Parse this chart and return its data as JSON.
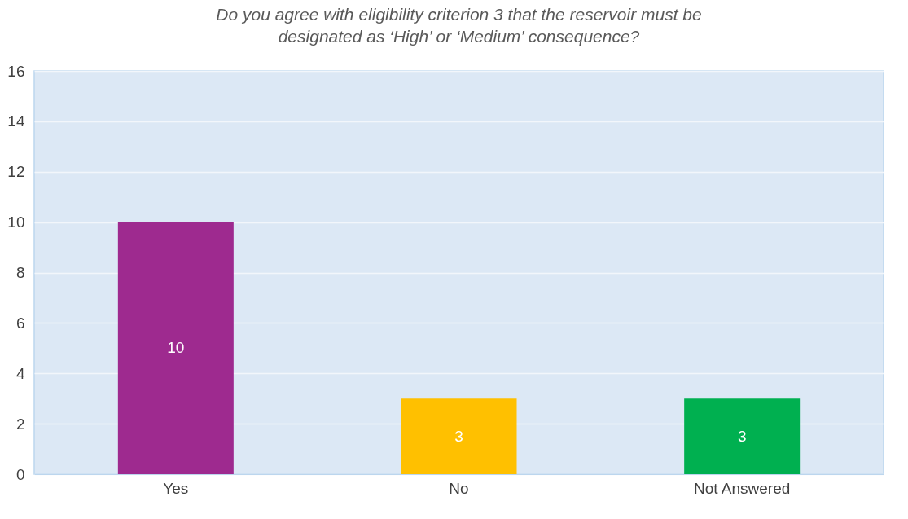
{
  "chart_data": {
    "type": "bar",
    "title": "Do you agree with eligibility criterion 3 that the reservoir must be designated as ‘High’ or ‘Medium’ consequence?",
    "categories": [
      "Yes",
      "No",
      "Not Answered"
    ],
    "values": [
      10,
      3,
      3
    ],
    "colors": [
      "#9e2a8f",
      "#ffc000",
      "#00b050"
    ],
    "ylim": [
      0,
      16
    ],
    "yticks": [
      0,
      2,
      4,
      6,
      8,
      10,
      12,
      14,
      16
    ],
    "grid": "y",
    "data_labels": true,
    "legend": false
  }
}
